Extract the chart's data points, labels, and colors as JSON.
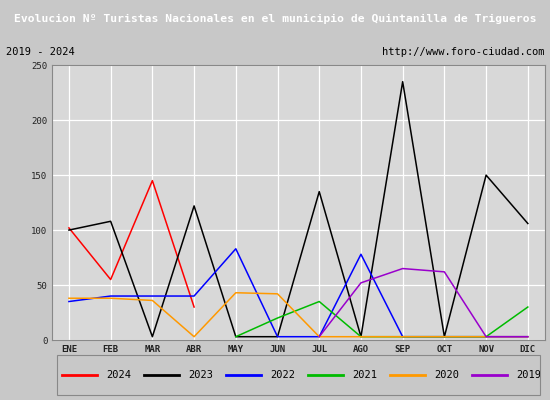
{
  "title": "Evolucion Nº Turistas Nacionales en el municipio de Quintanilla de Trigueros",
  "subtitle_left": "2019 - 2024",
  "subtitle_right": "http://www.foro-ciudad.com",
  "title_bg_color": "#4472c4",
  "title_text_color": "#ffffff",
  "months": [
    "ENE",
    "FEB",
    "MAR",
    "ABR",
    "MAY",
    "JUN",
    "JUL",
    "AGO",
    "SEP",
    "OCT",
    "NOV",
    "DIC"
  ],
  "ylim": [
    0,
    250
  ],
  "yticks": [
    0,
    50,
    100,
    150,
    200,
    250
  ],
  "series": {
    "2024": {
      "color": "#ff0000",
      "values": [
        102,
        55,
        145,
        30,
        null,
        null,
        null,
        null,
        null,
        null,
        null,
        null
      ]
    },
    "2023": {
      "color": "#000000",
      "values": [
        100,
        108,
        3,
        122,
        3,
        3,
        135,
        3,
        235,
        3,
        150,
        106
      ]
    },
    "2022": {
      "color": "#0000ff",
      "values": [
        35,
        40,
        40,
        40,
        83,
        3,
        3,
        78,
        3,
        3,
        3,
        3
      ]
    },
    "2021": {
      "color": "#00bb00",
      "values": [
        null,
        null,
        null,
        null,
        3,
        20,
        35,
        3,
        3,
        3,
        3,
        30
      ]
    },
    "2020": {
      "color": "#ff9900",
      "values": [
        38,
        38,
        36,
        3,
        43,
        42,
        3,
        3,
        3,
        3,
        3,
        3
      ]
    },
    "2019": {
      "color": "#9900cc",
      "values": [
        null,
        null,
        null,
        null,
        null,
        null,
        3,
        52,
        65,
        62,
        3,
        3
      ]
    }
  },
  "legend_order": [
    "2024",
    "2023",
    "2022",
    "2021",
    "2020",
    "2019"
  ],
  "fig_bg_color": "#c8c8c8",
  "plot_bg_color": "#d8d8d8",
  "subtitle_bg_color": "#e8e8e8",
  "grid_color": "#ffffff",
  "border_color": "#888888"
}
